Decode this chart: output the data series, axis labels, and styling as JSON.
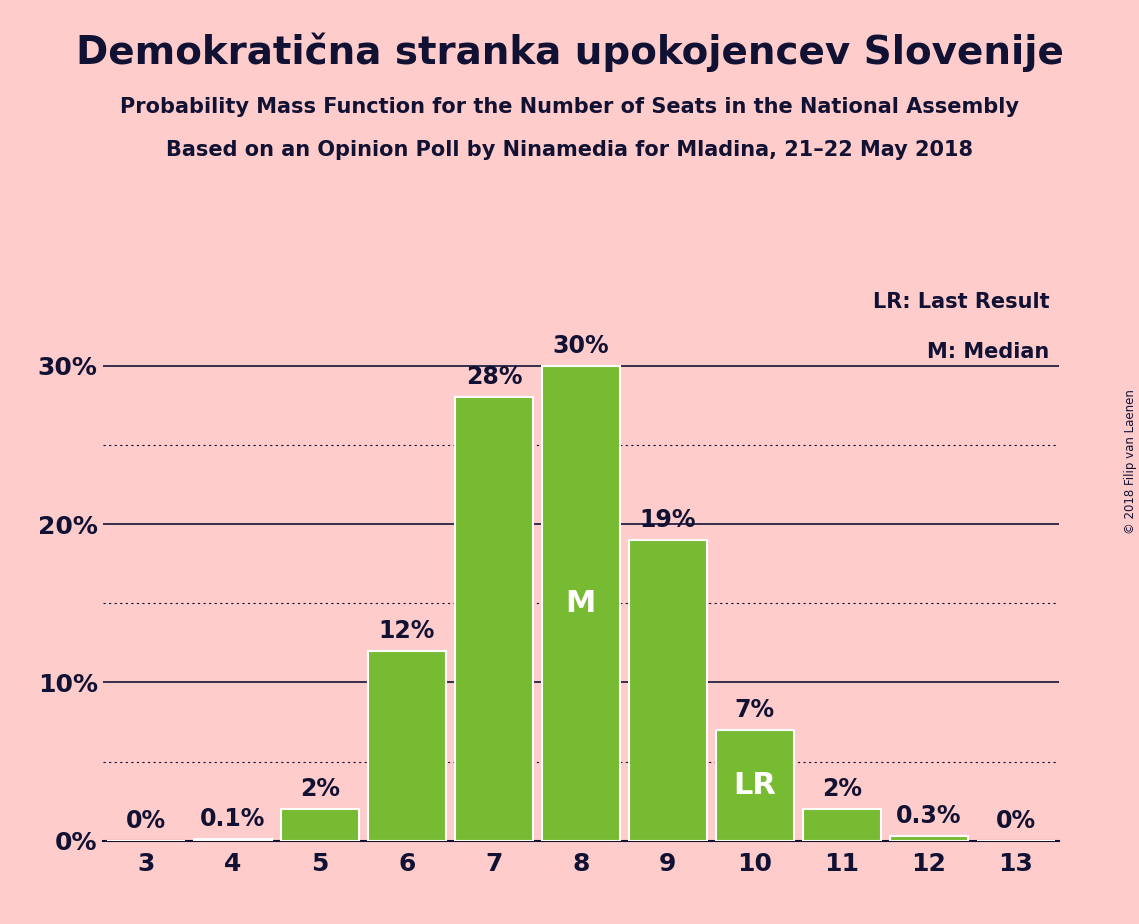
{
  "title": "Demokratična stranka upokojencev Slovenije",
  "subtitle1": "Probability Mass Function for the Number of Seats in the National Assembly",
  "subtitle2": "Based on an Opinion Poll by Ninamedia for Mladina, 21–22 May 2018",
  "copyright": "© 2018 Filip van Laenen",
  "legend_lr": "LR: Last Result",
  "legend_m": "M: Median",
  "categories": [
    3,
    4,
    5,
    6,
    7,
    8,
    9,
    10,
    11,
    12,
    13
  ],
  "values": [
    0.0,
    0.1,
    2.0,
    12.0,
    28.0,
    30.0,
    19.0,
    7.0,
    2.0,
    0.3,
    0.0
  ],
  "labels": [
    "0%",
    "0.1%",
    "2%",
    "12%",
    "28%",
    "30%",
    "19%",
    "7%",
    "2%",
    "0.3%",
    "0%"
  ],
  "bar_color": "#77BB33",
  "bar_edge_color": "#FFFFFF",
  "background_color": "#FFCCCC",
  "text_color": "#111133",
  "median_bar": 8,
  "lr_bar": 10,
  "median_label": "M",
  "lr_label": "LR",
  "ylim": [
    0,
    35
  ],
  "yticks": [
    0,
    10,
    20,
    30
  ],
  "ytick_labels": [
    "0%",
    "10%",
    "20%",
    "30%"
  ],
  "grid_solid_at": [
    10,
    20,
    30
  ],
  "grid_dotted_at": [
    5,
    15,
    25
  ],
  "title_fontsize": 28,
  "subtitle_fontsize": 15,
  "axis_tick_fontsize": 18,
  "bar_label_fontsize": 17,
  "inside_label_fontsize": 22,
  "legend_fontsize": 15
}
